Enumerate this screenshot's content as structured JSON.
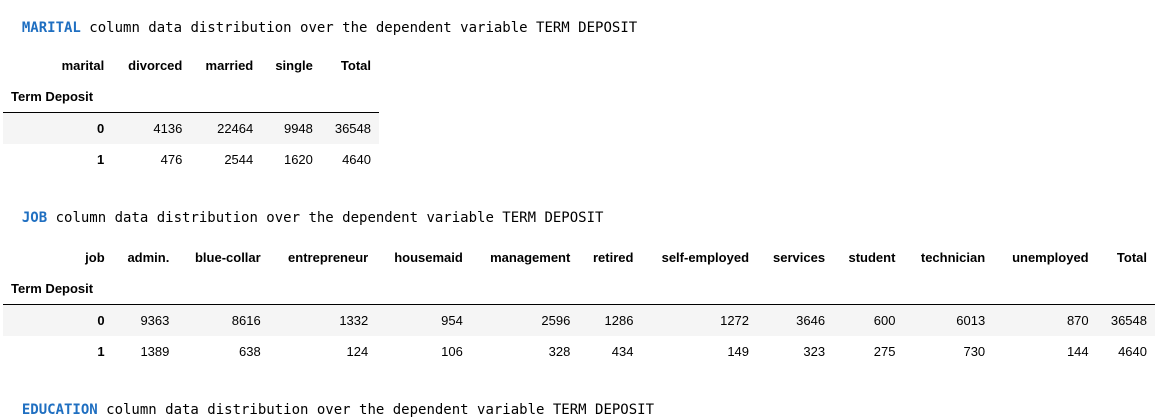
{
  "sections": {
    "marital": {
      "keyword": "MARITAL",
      "rest": " column data distribution over the dependent variable TERM DEPOSIT",
      "column_name": "marital",
      "index_name": "Term Deposit",
      "columns": [
        "divorced",
        "married",
        "single",
        "Total"
      ],
      "rows": [
        {
          "index": "0",
          "values": [
            "4136",
            "22464",
            "9948",
            "36548"
          ]
        },
        {
          "index": "1",
          "values": [
            "476",
            "2544",
            "1620",
            "4640"
          ]
        }
      ]
    },
    "job": {
      "keyword": "JOB",
      "rest": " column data distribution over the dependent variable TERM DEPOSIT",
      "column_name": "job",
      "index_name": "Term Deposit",
      "columns": [
        "admin.",
        "blue-collar",
        "entrepreneur",
        "housemaid",
        "management",
        "retired",
        "self-employed",
        "services",
        "student",
        "technician",
        "unemployed",
        "Total"
      ],
      "rows": [
        {
          "index": "0",
          "values": [
            "9363",
            "8616",
            "1332",
            "954",
            "2596",
            "1286",
            "1272",
            "3646",
            "600",
            "6013",
            "870",
            "36548"
          ]
        },
        {
          "index": "1",
          "values": [
            "1389",
            "638",
            "124",
            "106",
            "328",
            "434",
            "149",
            "323",
            "275",
            "730",
            "144",
            "4640"
          ]
        }
      ]
    },
    "education": {
      "keyword": "EDUCATION",
      "rest": " column data distribution over the dependent variable TERM DEPOSIT"
    }
  }
}
